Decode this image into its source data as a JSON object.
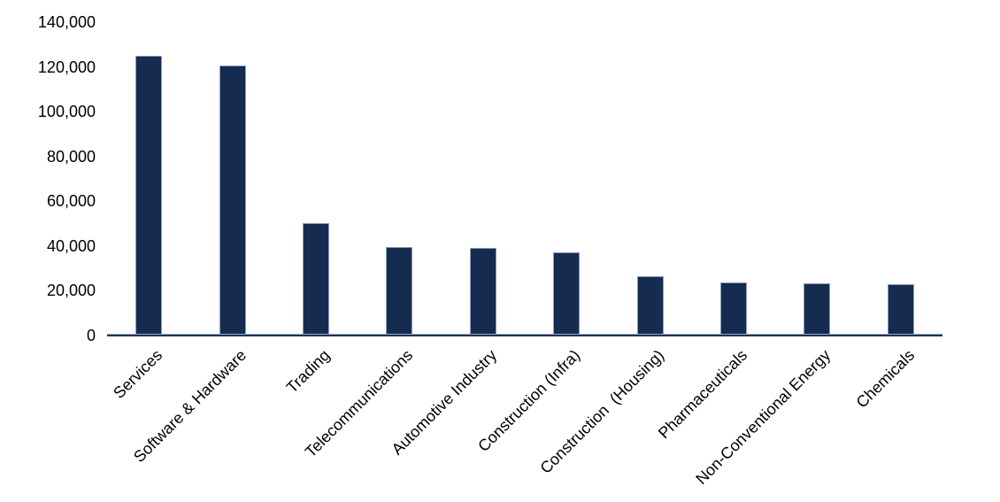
{
  "chart_data": {
    "type": "bar",
    "title": "",
    "xlabel": "",
    "ylabel": "",
    "categories": [
      "Services",
      "Software & Hardware",
      "Trading",
      "Telecommunications",
      "Automotive Industry",
      "Construction (Infra)",
      "Construction  (Housing)",
      "Pharmaceuticals",
      "Non-Conventional Energy",
      "Chemicals"
    ],
    "values": [
      125000,
      120800,
      50200,
      39700,
      39100,
      37300,
      26600,
      23700,
      23200,
      22900
    ],
    "y_ticks": [
      0,
      20000,
      40000,
      60000,
      80000,
      100000,
      120000,
      140000
    ],
    "y_tick_labels": [
      "0",
      "20,000",
      "40,000",
      "60,000",
      "80,000",
      "100,000",
      "120,000",
      "140,000"
    ],
    "ylim": [
      0,
      140000
    ],
    "grid": false,
    "legend_position": "none",
    "bar_orientation": "vertical",
    "x_label_rotation_deg": 45,
    "colors": {
      "bar_fill": "#152b50",
      "bar_border": "#8b9db9",
      "axis_line_dark": "#1e3356",
      "axis_line_light": "#93a9c7",
      "label_text": "#000000",
      "background": "#ffffff"
    }
  }
}
